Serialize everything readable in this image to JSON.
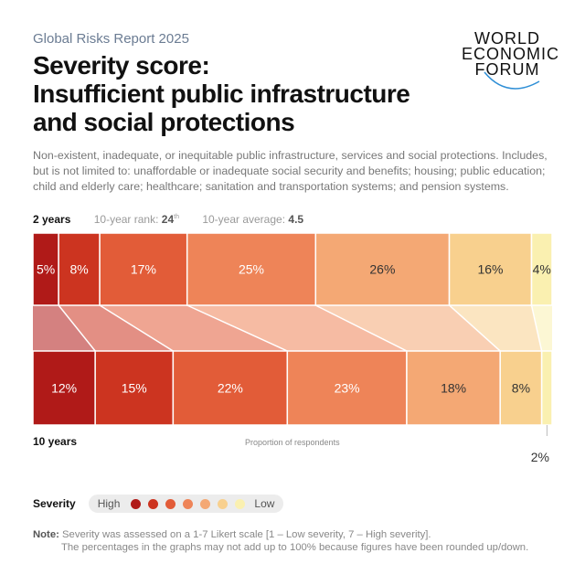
{
  "header": {
    "report": "Global Risks Report 2025",
    "title_line1": "Severity score:",
    "title_line2": "Insufficient public infrastructure",
    "title_line3": "and social protections",
    "logo_lines": [
      "WORLD",
      "ECONOMIC",
      "FORUM"
    ]
  },
  "description": "Non-existent, inadequate, or inequitable public infrastructure, services and social protections. Includes, but is not limited to: unaffordable or inadequate social security and benefits; housing; public education; child and elderly care; healthcare; sanitation and transportation systems; and pension systems.",
  "meta": {
    "label_2y": "2 years",
    "rank_label": "10-year rank:",
    "rank_value": "24",
    "rank_suffix": "th",
    "avg_label": "10-year average:",
    "avg_value": "4.5"
  },
  "chart_data": {
    "type": "bar",
    "subtype": "stacked-100-horizontal",
    "xlabel": "Proportion of respondents",
    "categories": [
      "7 (High)",
      "6",
      "5",
      "4",
      "3",
      "2",
      "1 (Low)"
    ],
    "colors": [
      "#b01a18",
      "#cc3420",
      "#e25c38",
      "#ee8458",
      "#f4a874",
      "#f8d08e",
      "#faf0b0"
    ],
    "series": [
      {
        "name": "2 years",
        "values": [
          5,
          8,
          17,
          25,
          26,
          16,
          4
        ],
        "labels": [
          "5%",
          "8%",
          "17%",
          "25%",
          "26%",
          "16%",
          "4%"
        ]
      },
      {
        "name": "10 years",
        "values": [
          12,
          15,
          22,
          23,
          18,
          8,
          2
        ],
        "labels": [
          "12%",
          "15%",
          "22%",
          "23%",
          "18%",
          "8%",
          "2%"
        ]
      }
    ]
  },
  "legend": {
    "title": "Severity",
    "high": "High",
    "low": "Low"
  },
  "note": {
    "label": "Note:",
    "line1": "Severity was assessed on a 1-7 Likert scale [1 – Low severity, 7 – High severity].",
    "line2": "The percentages in the graphs may not add up to 100% because figures have been rounded up/down."
  }
}
